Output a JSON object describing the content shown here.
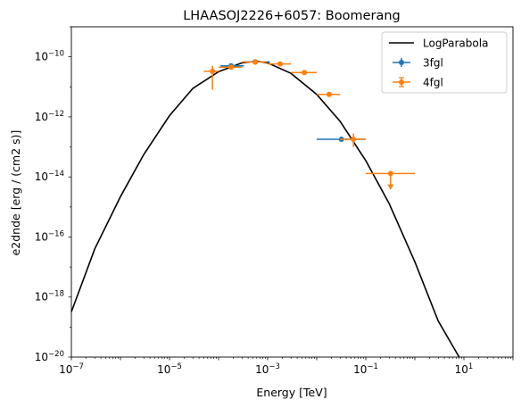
{
  "chart_data": {
    "type": "scatter",
    "title": "LHAASOJ2226+6057: Boomerang",
    "xlabel": "Energy [TeV]",
    "ylabel": "e2dnde [erg / (cm2 s)]",
    "xscale": "log",
    "yscale": "log",
    "xlim": [
      1e-07,
      100
    ],
    "ylim": [
      1e-20,
      1e-09
    ],
    "grid": false,
    "legend_position": "top-right",
    "x_ticks": [
      {
        "value": 1e-07,
        "base": "10",
        "exp": "−7"
      },
      {
        "value": 1e-05,
        "base": "10",
        "exp": "−5"
      },
      {
        "value": 0.001,
        "base": "10",
        "exp": "−3"
      },
      {
        "value": 0.1,
        "base": "10",
        "exp": "−1"
      },
      {
        "value": 10,
        "base": "10",
        "exp": "1"
      }
    ],
    "y_ticks": [
      {
        "value": 1e-10,
        "base": "10",
        "exp": "−10"
      },
      {
        "value": 1e-12,
        "base": "10",
        "exp": "−12"
      },
      {
        "value": 1e-14,
        "base": "10",
        "exp": "−14"
      },
      {
        "value": 1e-16,
        "base": "10",
        "exp": "−16"
      },
      {
        "value": 1e-18,
        "base": "10",
        "exp": "−18"
      },
      {
        "value": 1e-20,
        "base": "10",
        "exp": "−20"
      }
    ],
    "series": [
      {
        "name": "LogParabola",
        "kind": "line",
        "color": "#000000",
        "points": [
          [
            1e-07,
            3.2e-19
          ],
          [
            3e-07,
            4e-17
          ],
          [
            1e-06,
            2.2e-15
          ],
          [
            3e-06,
            5.6e-14
          ],
          [
            1e-05,
            1.1e-12
          ],
          [
            3e-05,
            8.9e-12
          ],
          [
            0.0001,
            3.2e-11
          ],
          [
            0.0003,
            6.3e-11
          ],
          [
            0.0006,
            7.1e-11
          ],
          [
            0.001,
            6.3e-11
          ],
          [
            0.003,
            2.8e-11
          ],
          [
            0.01,
            5.6e-12
          ],
          [
            0.03,
            7.1e-13
          ],
          [
            0.1,
            3.5e-14
          ],
          [
            0.3,
            1.3e-15
          ],
          [
            1,
            1.5e-17
          ],
          [
            3,
            1.6e-19
          ],
          [
            8,
            1e-20
          ]
        ]
      },
      {
        "name": "3fgl",
        "kind": "errorbar",
        "color": "#1f77b4",
        "points": [
          {
            "x": 0.00018,
            "y": 5e-11,
            "xerr": [
              0.00011,
              0.00033
            ]
          },
          {
            "x": 0.00056,
            "y": 6.8e-11,
            "xerr": [
              0.00033,
              0.0011
            ]
          },
          {
            "x": 0.032,
            "y": 1.8e-13,
            "xerr": [
              0.01,
              0.1
            ]
          }
        ]
      },
      {
        "name": "4fgl",
        "kind": "errorbar",
        "color": "#ff7f0e",
        "points": [
          {
            "x": 7.5e-05,
            "y": 3.3e-11,
            "xerr": [
              5e-05,
              0.0001
            ],
            "yerr": [
              8e-12,
              5e-11
            ]
          },
          {
            "x": 0.00018,
            "y": 4.5e-11,
            "xerr": [
              0.0001,
              0.0003
            ]
          },
          {
            "x": 0.00056,
            "y": 6.7e-11,
            "xerr": [
              0.0003,
              0.001
            ]
          },
          {
            "x": 0.0018,
            "y": 5.8e-11,
            "xerr": [
              0.001,
              0.003
            ]
          },
          {
            "x": 0.0056,
            "y": 3e-11,
            "xerr": [
              0.003,
              0.01
            ]
          },
          {
            "x": 0.018,
            "y": 5.6e-12,
            "xerr": [
              0.01,
              0.03
            ]
          },
          {
            "x": 0.056,
            "y": 1.8e-13,
            "xerr": [
              0.03,
              0.1
            ],
            "yerr": [
              1e-13,
              2.8e-13
            ]
          },
          {
            "x": 0.32,
            "y": 1.3e-14,
            "xerr": [
              0.1,
              1.0
            ],
            "yerr": [
              4e-15,
              1.6e-14
            ],
            "upper_limit": true
          }
        ]
      }
    ]
  }
}
